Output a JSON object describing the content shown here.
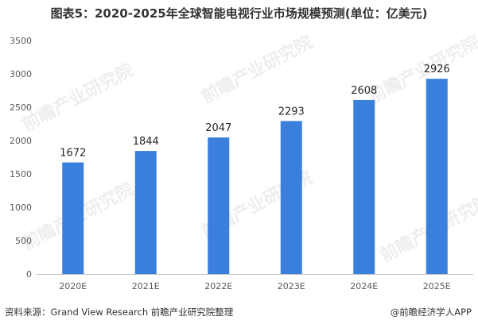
{
  "chart_data": {
    "type": "bar",
    "title": "图表5：2020-2025年全球智能电视行业市场规模预测(单位：亿美元)",
    "categories": [
      "2020E",
      "2021E",
      "2022E",
      "2023E",
      "2024E",
      "2025E"
    ],
    "values": [
      1672,
      1844,
      2047,
      2293,
      2608,
      2926
    ],
    "ylim": [
      0,
      3500
    ],
    "yticks": [
      0,
      500,
      1000,
      1500,
      2000,
      2500,
      3000,
      3500
    ],
    "xlabel": "",
    "ylabel": "",
    "grid": false,
    "bar_color": "#3a7fdc"
  },
  "footer": {
    "source": "资料来源：Grand View Research 前瞻产业研究院整理",
    "brand": "@前瞻经济学人APP"
  },
  "watermark": "前瞻产业研究院"
}
